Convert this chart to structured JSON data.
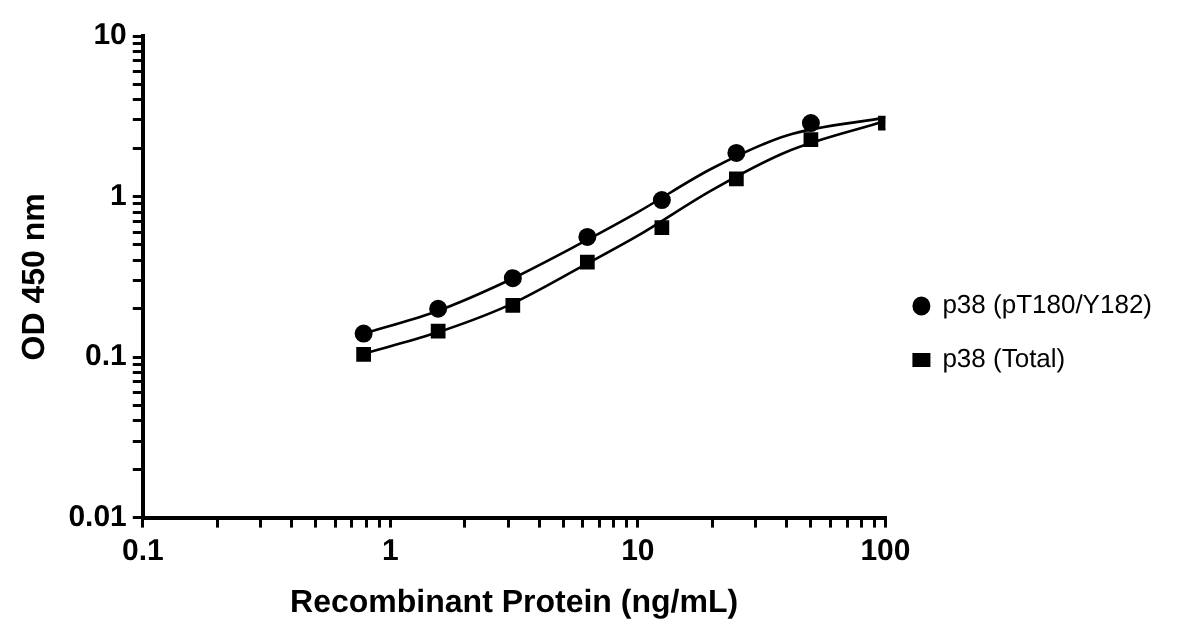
{
  "chart_data": {
    "type": "scatter",
    "xlabel": "Recombinant Protein (ng/mL)",
    "ylabel": "OD 450 nm",
    "log": "xy",
    "xlim": [
      0.1,
      100
    ],
    "ylim": [
      0.01,
      10
    ],
    "xticks": [
      0.1,
      {
        "value": 0.2,
        "label": null
      },
      {
        "value": 0.3,
        "label": null
      },
      {
        "value": 0.4,
        "label": null
      },
      {
        "value": 0.5,
        "label": null
      },
      {
        "value": 0.6,
        "label": null
      },
      {
        "value": 0.7,
        "label": null
      },
      {
        "value": 0.8,
        "label": null
      },
      {
        "value": 0.9,
        "label": null
      },
      1,
      {
        "value": 2,
        "label": null
      },
      {
        "value": 3,
        "label": null
      },
      {
        "value": 4,
        "label": null
      },
      {
        "value": 5,
        "label": null
      },
      {
        "value": 6,
        "label": null
      },
      {
        "value": 7,
        "label": null
      },
      {
        "value": 8,
        "label": null
      },
      {
        "value": 9,
        "label": null
      },
      10,
      {
        "value": 20,
        "label": null
      },
      {
        "value": 30,
        "label": null
      },
      {
        "value": 40,
        "label": null
      },
      {
        "value": 50,
        "label": null
      },
      {
        "value": 60,
        "label": null
      },
      {
        "value": 70,
        "label": null
      },
      {
        "value": 80,
        "label": null
      },
      {
        "value": 90,
        "label": null
      },
      100
    ],
    "yticks": [
      0.01,
      {
        "value": 0.02,
        "label": null
      },
      {
        "value": 0.03,
        "label": null
      },
      {
        "value": 0.04,
        "label": null
      },
      {
        "value": 0.05,
        "label": null
      },
      {
        "value": 0.06,
        "label": null
      },
      {
        "value": 0.07,
        "label": null
      },
      {
        "value": 0.08,
        "label": null
      },
      {
        "value": 0.09,
        "label": null
      },
      0.1,
      {
        "value": 0.2,
        "label": null
      },
      {
        "value": 0.3,
        "label": null
      },
      {
        "value": 0.4,
        "label": null
      },
      {
        "value": 0.5,
        "label": null
      },
      {
        "value": 0.6,
        "label": null
      },
      {
        "value": 0.7,
        "label": null
      },
      {
        "value": 0.8,
        "label": null
      },
      {
        "value": 0.9,
        "label": null
      },
      1,
      {
        "value": 2,
        "label": null
      },
      {
        "value": 3,
        "label": null
      },
      {
        "value": 4,
        "label": null
      },
      {
        "value": 5,
        "label": null
      },
      {
        "value": 6,
        "label": null
      },
      {
        "value": 7,
        "label": null
      },
      {
        "value": 8,
        "label": null
      },
      {
        "value": 9,
        "label": null
      },
      10
    ],
    "grid": false,
    "legend": "right",
    "series": [
      {
        "name": "p38 (pT180/Y182)",
        "color": "#000000",
        "marker": "circle",
        "x": [
          0.78,
          1.56,
          3.125,
          6.25,
          12.5,
          25,
          50
        ],
        "values": [
          0.14,
          0.2,
          0.31,
          0.56,
          0.95,
          1.87,
          2.87
        ]
      },
      {
        "name": "p38 (Total)",
        "color": "#000000",
        "marker": "square",
        "x": [
          0.78,
          1.56,
          3.125,
          6.25,
          12.5,
          25,
          50,
          100
        ],
        "values": [
          0.104,
          0.145,
          0.21,
          0.39,
          0.64,
          1.29,
          2.26,
          2.87
        ]
      },
      {
        "type": "line",
        "color": "#000000",
        "marker": "none",
        "x": [
          0.78,
          1.5,
          3,
          6,
          10,
          20,
          40,
          100
        ],
        "values": [
          0.14,
          0.19,
          0.3,
          0.52,
          0.8,
          1.5,
          2.4,
          3.1
        ]
      },
      {
        "type": "line",
        "color": "#000000",
        "marker": "none",
        "x": [
          0.78,
          1.5,
          3,
          6,
          10,
          20,
          40,
          100
        ],
        "values": [
          0.105,
          0.14,
          0.21,
          0.37,
          0.57,
          1.1,
          1.9,
          2.95
        ]
      }
    ]
  }
}
